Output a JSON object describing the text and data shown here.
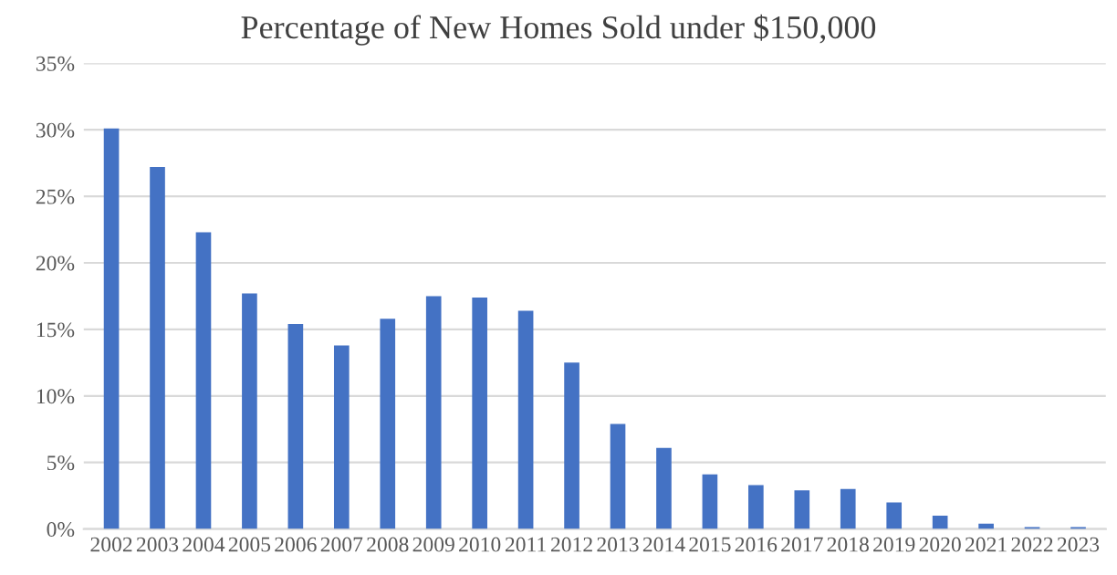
{
  "chart_data": {
    "type": "bar",
    "title": "Percentage of New Homes Sold under $150,000",
    "categories": [
      "2002",
      "2003",
      "2004",
      "2005",
      "2006",
      "2007",
      "2008",
      "2009",
      "2010",
      "2011",
      "2012",
      "2013",
      "2014",
      "2015",
      "2016",
      "2017",
      "2018",
      "2019",
      "2020",
      "2021",
      "2022",
      "2023"
    ],
    "values": [
      30.1,
      27.2,
      22.3,
      17.7,
      15.4,
      13.8,
      15.8,
      17.5,
      17.4,
      16.4,
      12.5,
      7.9,
      6.1,
      4.1,
      3.3,
      2.9,
      3.0,
      2.0,
      1.0,
      0.4,
      0.15,
      0.15
    ],
    "color": "#4472c4",
    "ylim": [
      0,
      35
    ],
    "yticks": [
      {
        "value": 0,
        "label": "0%"
      },
      {
        "value": 5,
        "label": "5%"
      },
      {
        "value": 10,
        "label": "10%"
      },
      {
        "value": 15,
        "label": "15%"
      },
      {
        "value": 20,
        "label": "20%"
      },
      {
        "value": 25,
        "label": "25%"
      },
      {
        "value": 30,
        "label": "30%"
      },
      {
        "value": 35,
        "label": "35%"
      }
    ],
    "grid": "y"
  }
}
